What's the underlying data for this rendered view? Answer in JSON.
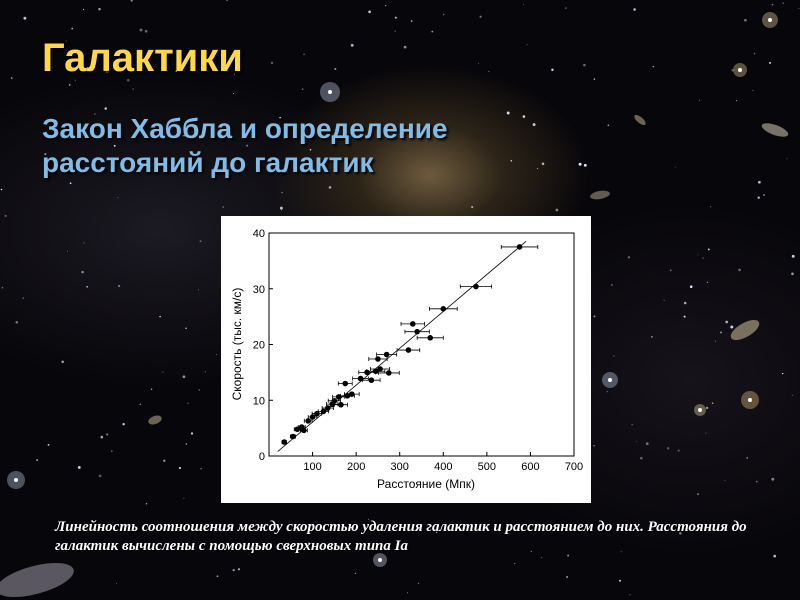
{
  "slide": {
    "title": "Галактики",
    "subtitle": "Закон Хаббла и определение расстояний до галактик",
    "caption": "Линейность соотношения между скоростью удаления галактик и расстоянием до них. Расстояния до галактик вычислены с помощью сверхновых типа Ia"
  },
  "colors": {
    "title": "#ffd84a",
    "subtitle": "#7fbde8",
    "caption": "#ffffff",
    "chart_background": "#ffffff",
    "points": "#000000"
  },
  "chart_data": {
    "type": "scatter",
    "xlabel": "Расстояние (Мпк)",
    "ylabel": "Скорость (тыс. км/с)",
    "xlim": [
      0,
      700
    ],
    "ylim": [
      0,
      40
    ],
    "xticks": [
      100,
      200,
      300,
      400,
      500,
      600,
      700
    ],
    "yticks": [
      0,
      10,
      20,
      30,
      40
    ],
    "grid": false,
    "fit_line": {
      "type": "linear",
      "from": [
        20,
        0.8
      ],
      "to": [
        590,
        38.5
      ]
    },
    "points": [
      {
        "x": 35,
        "y": 2.5,
        "xerr": 5
      },
      {
        "x": 55,
        "y": 3.5,
        "xerr": 6
      },
      {
        "x": 65,
        "y": 4.8,
        "xerr": 7
      },
      {
        "x": 75,
        "y": 5.2,
        "xerr": 8
      },
      {
        "x": 80,
        "y": 4.6,
        "xerr": 8
      },
      {
        "x": 90,
        "y": 6.3,
        "xerr": 9
      },
      {
        "x": 100,
        "y": 7.0,
        "xerr": 10
      },
      {
        "x": 110,
        "y": 7.6,
        "xerr": 11
      },
      {
        "x": 125,
        "y": 8.0,
        "xerr": 12
      },
      {
        "x": 135,
        "y": 8.6,
        "xerr": 13
      },
      {
        "x": 145,
        "y": 9.3,
        "xerr": 13
      },
      {
        "x": 150,
        "y": 9.9,
        "xerr": 14
      },
      {
        "x": 160,
        "y": 10.6,
        "xerr": 14
      },
      {
        "x": 165,
        "y": 9.2,
        "xerr": 15
      },
      {
        "x": 175,
        "y": 13.0,
        "xerr": 16
      },
      {
        "x": 180,
        "y": 10.8,
        "xerr": 16
      },
      {
        "x": 190,
        "y": 11.1,
        "xerr": 17
      },
      {
        "x": 210,
        "y": 13.9,
        "xerr": 18
      },
      {
        "x": 225,
        "y": 15.0,
        "xerr": 19
      },
      {
        "x": 235,
        "y": 13.6,
        "xerr": 20
      },
      {
        "x": 245,
        "y": 15.2,
        "xerr": 21
      },
      {
        "x": 250,
        "y": 17.4,
        "xerr": 21
      },
      {
        "x": 255,
        "y": 15.6,
        "xerr": 22
      },
      {
        "x": 270,
        "y": 18.2,
        "xerr": 23
      },
      {
        "x": 275,
        "y": 14.9,
        "xerr": 24
      },
      {
        "x": 320,
        "y": 19.0,
        "xerr": 26
      },
      {
        "x": 330,
        "y": 23.7,
        "xerr": 27
      },
      {
        "x": 340,
        "y": 22.3,
        "xerr": 28
      },
      {
        "x": 370,
        "y": 21.2,
        "xerr": 30
      },
      {
        "x": 400,
        "y": 26.4,
        "xerr": 32
      },
      {
        "x": 475,
        "y": 30.4,
        "xerr": 36
      },
      {
        "x": 575,
        "y": 37.5,
        "xerr": 42
      }
    ]
  }
}
